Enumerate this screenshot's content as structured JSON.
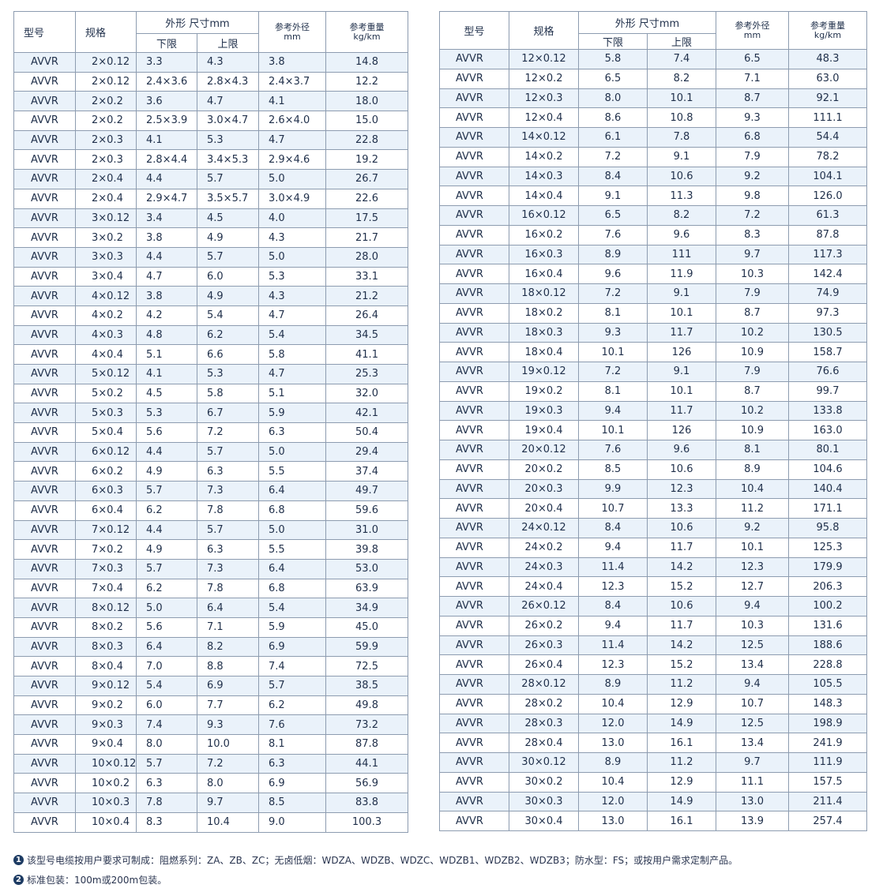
{
  "headers": {
    "type": "型号",
    "spec": "规格",
    "dims": "外形 尺寸mm",
    "lower": "下限",
    "upper": "上限",
    "od_line1": "参考外径",
    "od_line2": "mm",
    "weight_line1": "参考重量",
    "weight_line2": "kg/km"
  },
  "left_table": {
    "rows": [
      [
        "AVVR",
        "2×0.12",
        "3.3",
        "4.3",
        "3.8",
        "14.8"
      ],
      [
        "AVVR",
        "2×0.12",
        "2.4×3.6",
        "2.8×4.3",
        "2.4×3.7",
        "12.2"
      ],
      [
        "AVVR",
        "2×0.2",
        "3.6",
        "4.7",
        "4.1",
        "18.0"
      ],
      [
        "AVVR",
        "2×0.2",
        "2.5×3.9",
        "3.0×4.7",
        "2.6×4.0",
        "15.0"
      ],
      [
        "AVVR",
        "2×0.3",
        "4.1",
        "5.3",
        "4.7",
        "22.8"
      ],
      [
        "AVVR",
        "2×0.3",
        "2.8×4.4",
        "3.4×5.3",
        "2.9×4.6",
        "19.2"
      ],
      [
        "AVVR",
        "2×0.4",
        "4.4",
        "5.7",
        "5.0",
        "26.7"
      ],
      [
        "AVVR",
        "2×0.4",
        "2.9×4.7",
        "3.5×5.7",
        "3.0×4.9",
        "22.6"
      ],
      [
        "AVVR",
        "3×0.12",
        "3.4",
        "4.5",
        "4.0",
        "17.5"
      ],
      [
        "AVVR",
        "3×0.2",
        "3.8",
        "4.9",
        "4.3",
        "21.7"
      ],
      [
        "AVVR",
        "3×0.3",
        "4.4",
        "5.7",
        "5.0",
        "28.0"
      ],
      [
        "AVVR",
        "3×0.4",
        "4.7",
        "6.0",
        "5.3",
        "33.1"
      ],
      [
        "AVVR",
        "4×0.12",
        "3.8",
        "4.9",
        "4.3",
        "21.2"
      ],
      [
        "AVVR",
        "4×0.2",
        "4.2",
        "5.4",
        "4.7",
        "26.4"
      ],
      [
        "AVVR",
        "4×0.3",
        "4.8",
        "6.2",
        "5.4",
        "34.5"
      ],
      [
        "AVVR",
        "4×0.4",
        "5.1",
        "6.6",
        "5.8",
        "41.1"
      ],
      [
        "AVVR",
        "5×0.12",
        "4.1",
        "5.3",
        "4.7",
        "25.3"
      ],
      [
        "AVVR",
        "5×0.2",
        "4.5",
        "5.8",
        "5.1",
        "32.0"
      ],
      [
        "AVVR",
        "5×0.3",
        "5.3",
        "6.7",
        "5.9",
        "42.1"
      ],
      [
        "AVVR",
        "5×0.4",
        "5.6",
        "7.2",
        "6.3",
        "50.4"
      ],
      [
        "AVVR",
        "6×0.12",
        "4.4",
        "5.7",
        "5.0",
        "29.4"
      ],
      [
        "AVVR",
        "6×0.2",
        "4.9",
        "6.3",
        "5.5",
        "37.4"
      ],
      [
        "AVVR",
        "6×0.3",
        "5.7",
        "7.3",
        "6.4",
        "49.7"
      ],
      [
        "AVVR",
        "6×0.4",
        "6.2",
        "7.8",
        "6.8",
        "59.6"
      ],
      [
        "AVVR",
        "7×0.12",
        "4.4",
        "5.7",
        "5.0",
        "31.0"
      ],
      [
        "AVVR",
        "7×0.2",
        "4.9",
        "6.3",
        "5.5",
        "39.8"
      ],
      [
        "AVVR",
        "7×0.3",
        "5.7",
        "7.3",
        "6.4",
        "53.0"
      ],
      [
        "AVVR",
        "7×0.4",
        "6.2",
        "7.8",
        "6.8",
        "63.9"
      ],
      [
        "AVVR",
        "8×0.12",
        "5.0",
        "6.4",
        "5.4",
        "34.9"
      ],
      [
        "AVVR",
        "8×0.2",
        "5.6",
        "7.1",
        "5.9",
        "45.0"
      ],
      [
        "AVVR",
        "8×0.3",
        "6.4",
        "8.2",
        "6.9",
        "59.9"
      ],
      [
        "AVVR",
        "8×0.4",
        "7.0",
        "8.8",
        "7.4",
        "72.5"
      ],
      [
        "AVVR",
        "9×0.12",
        "5.4",
        "6.9",
        "5.7",
        "38.5"
      ],
      [
        "AVVR",
        "9×0.2",
        "6.0",
        "7.7",
        "6.2",
        "49.8"
      ],
      [
        "AVVR",
        "9×0.3",
        "7.4",
        "9.3",
        "7.6",
        "73.2"
      ],
      [
        "AVVR",
        "9×0.4",
        "8.0",
        "10.0",
        "8.1",
        "87.8"
      ],
      [
        "AVVR",
        "10×0.12",
        "5.7",
        "7.2",
        "6.3",
        "44.1"
      ],
      [
        "AVVR",
        "10×0.2",
        "6.3",
        "8.0",
        "6.9",
        "56.9"
      ],
      [
        "AVVR",
        "10×0.3",
        "7.8",
        "9.7",
        "8.5",
        "83.8"
      ],
      [
        "AVVR",
        "10×0.4",
        "8.3",
        "10.4",
        "9.0",
        "100.3"
      ]
    ]
  },
  "right_table": {
    "rows": [
      [
        "AVVR",
        "12×0.12",
        "5.8",
        "7.4",
        "6.5",
        "48.3"
      ],
      [
        "AVVR",
        "12×0.2",
        "6.5",
        "8.2",
        "7.1",
        "63.0"
      ],
      [
        "AVVR",
        "12×0.3",
        "8.0",
        "10.1",
        "8.7",
        "92.1"
      ],
      [
        "AVVR",
        "12×0.4",
        "8.6",
        "10.8",
        "9.3",
        "111.1"
      ],
      [
        "AVVR",
        "14×0.12",
        "6.1",
        "7.8",
        "6.8",
        "54.4"
      ],
      [
        "AVVR",
        "14×0.2",
        "7.2",
        "9.1",
        "7.9",
        "78.2"
      ],
      [
        "AVVR",
        "14×0.3",
        "8.4",
        "10.6",
        "9.2",
        "104.1"
      ],
      [
        "AVVR",
        "14×0.4",
        "9.1",
        "11.3",
        "9.8",
        "126.0"
      ],
      [
        "AVVR",
        "16×0.12",
        "6.5",
        "8.2",
        "7.2",
        "61.3"
      ],
      [
        "AVVR",
        "16×0.2",
        "7.6",
        "9.6",
        "8.3",
        "87.8"
      ],
      [
        "AVVR",
        "16×0.3",
        "8.9",
        "111",
        "9.7",
        "117.3"
      ],
      [
        "AVVR",
        "16×0.4",
        "9.6",
        "11.9",
        "10.3",
        "142.4"
      ],
      [
        "AVVR",
        "18×0.12",
        "7.2",
        "9.1",
        "7.9",
        "74.9"
      ],
      [
        "AVVR",
        "18×0.2",
        "8.1",
        "10.1",
        "8.7",
        "97.3"
      ],
      [
        "AVVR",
        "18×0.3",
        "9.3",
        "11.7",
        "10.2",
        "130.5"
      ],
      [
        "AVVR",
        "18×0.4",
        "10.1",
        "126",
        "10.9",
        "158.7"
      ],
      [
        "AVVR",
        "19×0.12",
        "7.2",
        "9.1",
        "7.9",
        "76.6"
      ],
      [
        "AVVR",
        "19×0.2",
        "8.1",
        "10.1",
        "8.7",
        "99.7"
      ],
      [
        "AVVR",
        "19×0.3",
        "9.4",
        "11.7",
        "10.2",
        "133.8"
      ],
      [
        "AVVR",
        "19×0.4",
        "10.1",
        "126",
        "10.9",
        "163.0"
      ],
      [
        "AVVR",
        "20×0.12",
        "7.6",
        "9.6",
        "8.1",
        "80.1"
      ],
      [
        "AVVR",
        "20×0.2",
        "8.5",
        "10.6",
        "8.9",
        "104.6"
      ],
      [
        "AVVR",
        "20×0.3",
        "9.9",
        "12.3",
        "10.4",
        "140.4"
      ],
      [
        "AVVR",
        "20×0.4",
        "10.7",
        "13.3",
        "11.2",
        "171.1"
      ],
      [
        "AVVR",
        "24×0.12",
        "8.4",
        "10.6",
        "9.2",
        "95.8"
      ],
      [
        "AVVR",
        "24×0.2",
        "9.4",
        "11.7",
        "10.1",
        "125.3"
      ],
      [
        "AVVR",
        "24×0.3",
        "11.4",
        "14.2",
        "12.3",
        "179.9"
      ],
      [
        "AVVR",
        "24×0.4",
        "12.3",
        "15.2",
        "12.7",
        "206.3"
      ],
      [
        "AVVR",
        "26×0.12",
        "8.4",
        "10.6",
        "9.4",
        "100.2"
      ],
      [
        "AVVR",
        "26×0.2",
        "9.4",
        "11.7",
        "10.3",
        "131.6"
      ],
      [
        "AVVR",
        "26×0.3",
        "11.4",
        "14.2",
        "12.5",
        "188.6"
      ],
      [
        "AVVR",
        "26×0.4",
        "12.3",
        "15.2",
        "13.4",
        "228.8"
      ],
      [
        "AVVR",
        "28×0.12",
        "8.9",
        "11.2",
        "9.4",
        "105.5"
      ],
      [
        "AVVR",
        "28×0.2",
        "10.4",
        "12.9",
        "10.7",
        "148.3"
      ],
      [
        "AVVR",
        "28×0.3",
        "12.0",
        "14.9",
        "12.5",
        "198.9"
      ],
      [
        "AVVR",
        "28×0.4",
        "13.0",
        "16.1",
        "13.4",
        "241.9"
      ],
      [
        "AVVR",
        "30×0.12",
        "8.9",
        "11.2",
        "9.7",
        "111.9"
      ],
      [
        "AVVR",
        "30×0.2",
        "10.4",
        "12.9",
        "11.1",
        "157.5"
      ],
      [
        "AVVR",
        "30×0.3",
        "12.0",
        "14.9",
        "13.0",
        "211.4"
      ],
      [
        "AVVR",
        "30×0.4",
        "13.0",
        "16.1",
        "13.9",
        "257.4"
      ]
    ]
  },
  "notes": [
    {
      "marker": "1",
      "text": "该型号电缆按用户要求可制成：阻燃系列：ZA、ZB、ZC；无卤低烟：WDZA、WDZB、WDZC、WDZB1、WDZB2、WDZB3；防水型：FS；或按用户需求定制产品。"
    },
    {
      "marker": "2",
      "text": "标准包装：100m或200m包装。"
    }
  ],
  "colors": {
    "stripe": "#eaf2fa",
    "border": "#8d9cb0",
    "text": "#1f2f4a",
    "marker": "#1d3b63"
  }
}
